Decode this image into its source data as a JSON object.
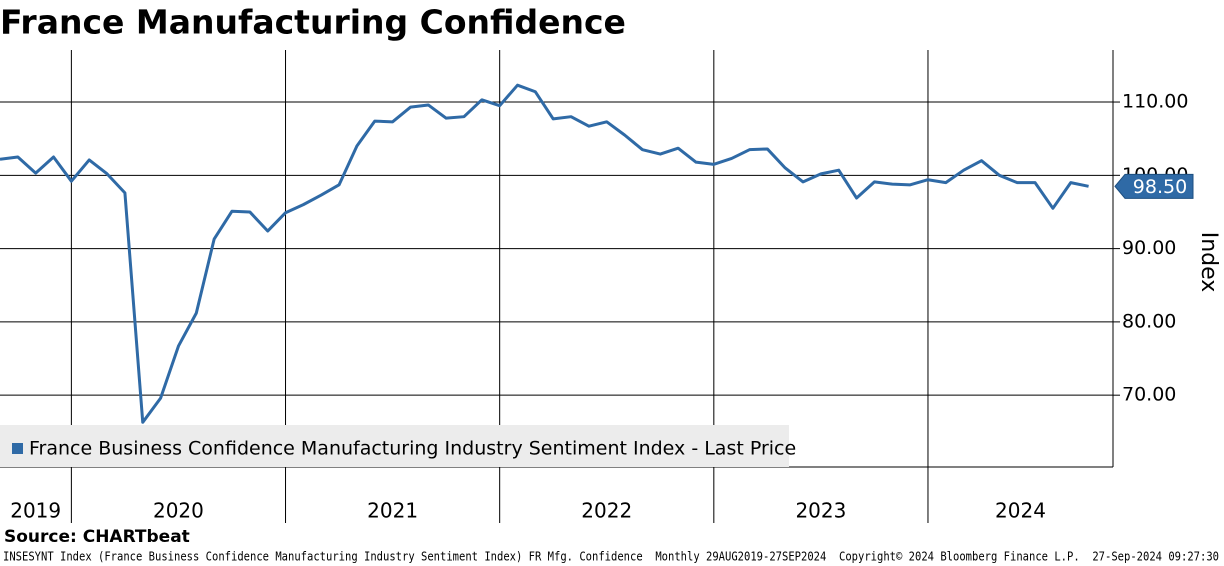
{
  "chart_data": {
    "type": "line",
    "title": "France Manufacturing Confidence",
    "y_label": "Index",
    "source": "Source: CHARTbeat",
    "footer": "INSESYNT Index (France Business Confidence Manufacturing Industry Sentiment Index) FR Mfg. Confidence  Monthly 29AUG2019-27SEP2024  Copyright© 2024 Bloomberg Finance L.P.  27-Sep-2024 09:27:30",
    "x": [
      2019.6667,
      2019.75,
      2019.8333,
      2019.9167,
      2020.0,
      2020.0833,
      2020.1667,
      2020.25,
      2020.3333,
      2020.4167,
      2020.5,
      2020.5833,
      2020.6667,
      2020.75,
      2020.8333,
      2020.9167,
      2021.0,
      2021.0833,
      2021.1667,
      2021.25,
      2021.3333,
      2021.4167,
      2021.5,
      2021.5833,
      2021.6667,
      2021.75,
      2021.8333,
      2021.9167,
      2022.0,
      2022.0833,
      2022.1667,
      2022.25,
      2022.3333,
      2022.4167,
      2022.5,
      2022.5833,
      2022.6667,
      2022.75,
      2022.8333,
      2022.9167,
      2023.0,
      2023.0833,
      2023.1667,
      2023.25,
      2023.3333,
      2023.4167,
      2023.5,
      2023.5833,
      2023.6667,
      2023.75,
      2023.8333,
      2023.9167,
      2024.0,
      2024.0833,
      2024.1667,
      2024.25,
      2024.3333,
      2024.4167,
      2024.5,
      2024.5833,
      2024.6667,
      2024.75
    ],
    "series": [
      {
        "name": "France Business Confidence Manufacturing Industry Sentiment Index - Last Price",
        "color": "#2f6aa6",
        "values": [
          102.2,
          102.5,
          100.3,
          102.5,
          99.2,
          102.1,
          100.2,
          97.6,
          66.3,
          69.6,
          76.7,
          81.2,
          91.3,
          95.1,
          95.0,
          92.4,
          94.9,
          96.0,
          97.3,
          98.7,
          104.0,
          107.4,
          107.3,
          109.3,
          109.6,
          107.8,
          108.0,
          110.3,
          109.5,
          112.3,
          111.4,
          107.7,
          108.0,
          106.7,
          107.3,
          105.5,
          103.5,
          102.9,
          103.7,
          101.8,
          101.5,
          102.3,
          103.5,
          103.6,
          101.0,
          99.1,
          100.2,
          100.7,
          96.9,
          99.1,
          98.8,
          98.7,
          99.4,
          99.0,
          100.7,
          102.0,
          100.0,
          99.0,
          99.0,
          95.5,
          99.0,
          98.5
        ],
        "value_labels": [
          null,
          null,
          null,
          null,
          null,
          null,
          null,
          null,
          null,
          null,
          null,
          null,
          null,
          null,
          null,
          null,
          null,
          null,
          null,
          null,
          null,
          null,
          null,
          null,
          null,
          null,
          null,
          null,
          null,
          null,
          null,
          null,
          null,
          null,
          null,
          null,
          null,
          null,
          null,
          null,
          null,
          null,
          null,
          null,
          null,
          null,
          null,
          null,
          null,
          null,
          null,
          null,
          null,
          null,
          null,
          null,
          null,
          null,
          null,
          null,
          null,
          "98.50"
        ]
      }
    ],
    "xlim": [
      2019.6667,
      2024.864
    ],
    "xticks": [
      2019,
      2020,
      2021,
      2022,
      2023,
      2024
    ],
    "ylim": [
      60.2,
      117.1
    ],
    "yticks": [
      {
        "value": 70,
        "label": "70.00"
      },
      {
        "value": 80,
        "label": "80.00"
      },
      {
        "value": 90,
        "label": "90.00"
      },
      {
        "value": 100,
        "label": "100.00"
      },
      {
        "value": 110,
        "label": "110.00"
      }
    ],
    "grid": true,
    "legend": "lower left"
  }
}
